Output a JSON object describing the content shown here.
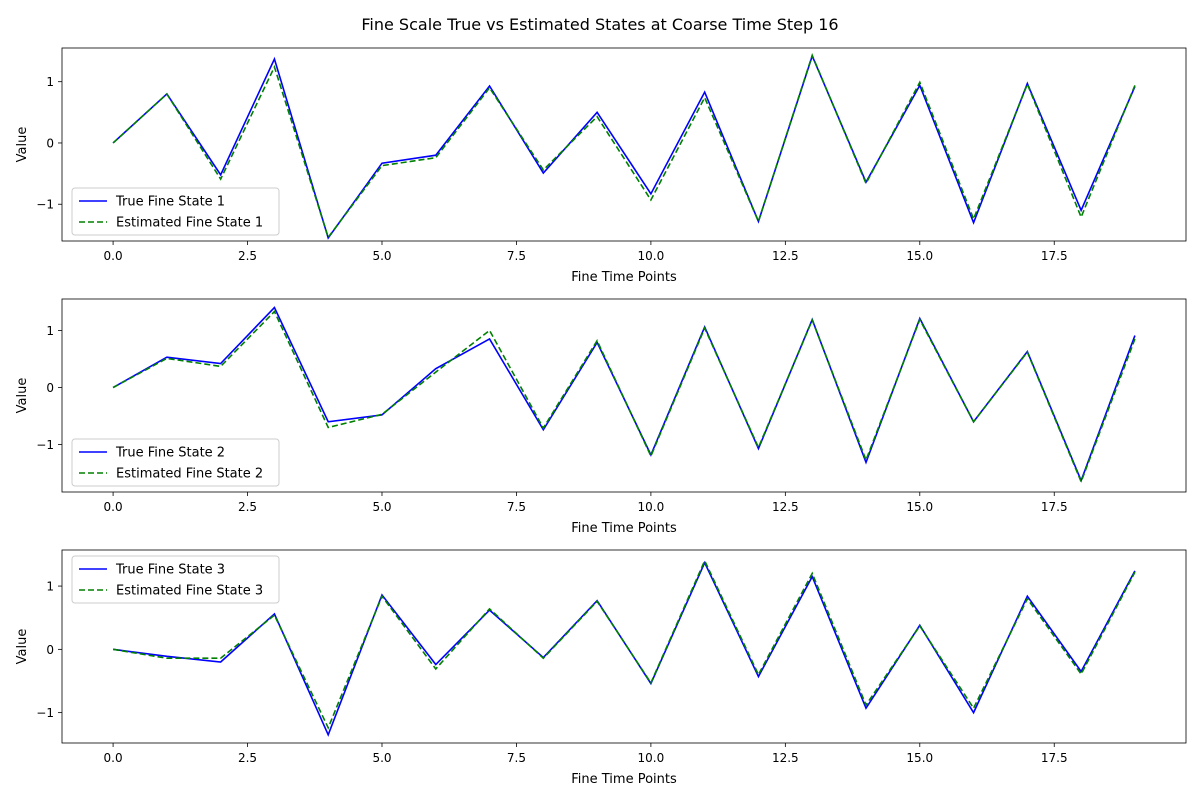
{
  "figure_title": "Fine Scale True vs Estimated States at Coarse Time Step 16",
  "colors": {
    "true_line": "#0000ff",
    "estimated_line": "#008000"
  },
  "chart_data": [
    {
      "type": "line",
      "xlabel": "Fine Time Points",
      "ylabel": "Value",
      "xlim": [
        -0.95,
        19.95
      ],
      "ylim": [
        -1.6,
        1.55
      ],
      "xticks": [
        0.0,
        2.5,
        5.0,
        7.5,
        10.0,
        12.5,
        15.0,
        17.5
      ],
      "xtick_labels": [
        "0.0",
        "2.5",
        "5.0",
        "7.5",
        "10.0",
        "12.5",
        "15.0",
        "17.5"
      ],
      "yticks": [
        -1,
        0,
        1
      ],
      "ytick_labels": [
        "−1",
        "0",
        "1"
      ],
      "grid": false,
      "legend_position": "lower-left",
      "x": [
        0,
        1,
        2,
        3,
        4,
        5,
        6,
        7,
        8,
        9,
        10,
        11,
        12,
        13,
        14,
        15,
        16,
        17,
        18,
        19
      ],
      "series": [
        {
          "name": "True Fine State 1",
          "style": "solid",
          "color": "#0000ff",
          "values": [
            0.0,
            0.8,
            -0.52,
            1.37,
            -1.55,
            -0.33,
            -0.2,
            0.93,
            -0.49,
            0.5,
            -0.83,
            0.83,
            -1.28,
            1.42,
            -0.64,
            0.94,
            -1.3,
            0.97,
            -1.1,
            0.92
          ]
        },
        {
          "name": "Estimated Fine State 1",
          "style": "dashed",
          "color": "#008000",
          "values": [
            0.0,
            0.8,
            -0.59,
            1.24,
            -1.54,
            -0.37,
            -0.24,
            0.9,
            -0.44,
            0.43,
            -0.93,
            0.74,
            -1.28,
            1.43,
            -0.66,
            0.99,
            -1.24,
            0.96,
            -1.21,
            0.94
          ]
        }
      ]
    },
    {
      "type": "line",
      "xlabel": "Fine Time Points",
      "ylabel": "Value",
      "xlim": [
        -0.95,
        19.95
      ],
      "ylim": [
        -1.83,
        1.55
      ],
      "xticks": [
        0.0,
        2.5,
        5.0,
        7.5,
        10.0,
        12.5,
        15.0,
        17.5
      ],
      "xtick_labels": [
        "0.0",
        "2.5",
        "5.0",
        "7.5",
        "10.0",
        "12.5",
        "15.0",
        "17.5"
      ],
      "yticks": [
        -1,
        0,
        1
      ],
      "ytick_labels": [
        "−1",
        "0",
        "1"
      ],
      "grid": false,
      "legend_position": "lower-left",
      "x": [
        0,
        1,
        2,
        3,
        4,
        5,
        6,
        7,
        8,
        9,
        10,
        11,
        12,
        13,
        14,
        15,
        16,
        17,
        18,
        19
      ],
      "series": [
        {
          "name": "True Fine State 2",
          "style": "solid",
          "color": "#0000ff",
          "values": [
            0.0,
            0.53,
            0.42,
            1.4,
            -0.6,
            -0.48,
            0.33,
            0.85,
            -0.74,
            0.79,
            -1.18,
            1.06,
            -1.07,
            1.19,
            -1.31,
            1.21,
            -0.6,
            0.63,
            -1.63,
            0.91
          ]
        },
        {
          "name": "Estimated Fine State 2",
          "style": "dashed",
          "color": "#008000",
          "values": [
            0.0,
            0.51,
            0.37,
            1.33,
            -0.7,
            -0.47,
            0.27,
            1.0,
            -0.71,
            0.82,
            -1.2,
            1.04,
            -1.05,
            1.18,
            -1.27,
            1.19,
            -0.6,
            0.62,
            -1.65,
            0.85
          ]
        }
      ]
    },
    {
      "type": "line",
      "xlabel": "Fine Time Points",
      "ylabel": "Value",
      "xlim": [
        -0.95,
        19.95
      ],
      "ylim": [
        -1.48,
        1.57
      ],
      "xticks": [
        0.0,
        2.5,
        5.0,
        7.5,
        10.0,
        12.5,
        15.0,
        17.5
      ],
      "xtick_labels": [
        "0.0",
        "2.5",
        "5.0",
        "7.5",
        "10.0",
        "12.5",
        "15.0",
        "17.5"
      ],
      "yticks": [
        -1,
        0,
        1
      ],
      "ytick_labels": [
        "−1",
        "0",
        "1"
      ],
      "grid": false,
      "legend_position": "upper-left",
      "x": [
        0,
        1,
        2,
        3,
        4,
        5,
        6,
        7,
        8,
        9,
        10,
        11,
        12,
        13,
        14,
        15,
        16,
        17,
        18,
        19
      ],
      "series": [
        {
          "name": "True Fine State 3",
          "style": "solid",
          "color": "#0000ff",
          "values": [
            0.0,
            -0.11,
            -0.2,
            0.56,
            -1.35,
            0.86,
            -0.24,
            0.62,
            -0.13,
            0.77,
            -0.54,
            1.37,
            -0.43,
            1.15,
            -0.93,
            0.38,
            -1.0,
            0.84,
            -0.35,
            1.24
          ]
        },
        {
          "name": "Estimated Fine State 3",
          "style": "dashed",
          "color": "#008000",
          "values": [
            0.0,
            -0.14,
            -0.14,
            0.54,
            -1.24,
            0.84,
            -0.31,
            0.64,
            -0.14,
            0.76,
            -0.53,
            1.4,
            -0.4,
            1.2,
            -0.88,
            0.37,
            -0.93,
            0.8,
            -0.39,
            1.22
          ]
        }
      ]
    }
  ]
}
